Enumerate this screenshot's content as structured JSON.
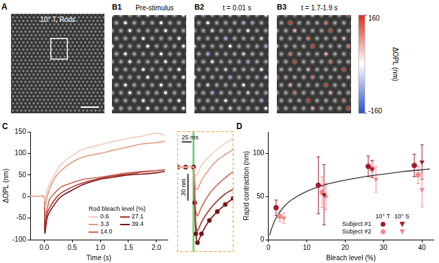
{
  "panels": [
    {
      "label": "A",
      "title": "10° T, Rods"
    },
    {
      "label": "B1",
      "title": "Pre-stimulus"
    },
    {
      "label": "B2",
      "title": "t = 0.01 s"
    },
    {
      "label": "B3",
      "title": "t = 1.7-1.9 s"
    }
  ],
  "colorbar": {
    "label": "ΔOPL (nm)",
    "range": [
      -160,
      160
    ],
    "ticks": [
      -160,
      160
    ]
  },
  "chart_data": [
    {
      "panel": "C",
      "type": "line",
      "xlabel": "Time (s)",
      "ylabel": "ΔOPL (nm)",
      "x": [
        -0.25,
        -0.1,
        0,
        0.01,
        0.05,
        0.1,
        0.2,
        0.3,
        0.5,
        0.7,
        1.0,
        1.25,
        1.5,
        1.75,
        2.0,
        2.15
      ],
      "series": [
        {
          "name": "0.6",
          "color": "#f4c9b8",
          "values": [
            0,
            0,
            0,
            -10,
            15,
            30,
            55,
            75,
            95,
            110,
            120,
            128,
            135,
            140,
            147,
            142
          ]
        },
        {
          "name": "3.3",
          "color": "#e39a80",
          "values": [
            0,
            0,
            0,
            -25,
            -2,
            20,
            45,
            60,
            80,
            92,
            100,
            108,
            115,
            122,
            125,
            128
          ]
        },
        {
          "name": "14.0",
          "color": "#c9614e",
          "values": [
            0,
            0,
            0,
            -55,
            -30,
            -5,
            10,
            22,
            32,
            40,
            45,
            50,
            55,
            58,
            60,
            62
          ]
        },
        {
          "name": "27.1",
          "color": "#a8302b",
          "values": [
            0,
            0,
            0,
            -72,
            -40,
            -25,
            -5,
            8,
            22,
            32,
            42,
            48,
            52,
            57,
            60,
            62
          ]
        },
        {
          "name": "39.4",
          "color": "#7a1014",
          "values": [
            0,
            0,
            0,
            -85,
            -50,
            -35,
            -15,
            0,
            15,
            28,
            40,
            45,
            50,
            52,
            55,
            58
          ]
        }
      ],
      "xlim": [
        -0.25,
        2.2
      ],
      "ylim": [
        -100,
        150
      ],
      "xticks": [
        {
          "value": 0,
          "label": "0.0"
        },
        0.5,
        {
          "value": 1,
          "label": "1.0"
        },
        1.5,
        {
          "value": 2,
          "label": "2.0"
        }
      ],
      "yticks": [
        -100,
        -50,
        0,
        50,
        100,
        150
      ],
      "legend_title": "Rod bleach level (%)",
      "legend": "lower right",
      "grid": false
    },
    {
      "type": "line",
      "x": [
        -0.04,
        -0.02,
        0,
        0.003,
        0.006,
        0.01,
        0.02,
        0.04,
        0.06,
        0.08,
        0.1
      ],
      "series": [
        {
          "color": "#f4c9b8",
          "marker": "none",
          "values": [
            0,
            0,
            0,
            -5,
            -10,
            -8,
            2,
            12,
            20,
            27,
            32
          ]
        },
        {
          "color": "#e39a80",
          "marker": "none",
          "values": [
            0,
            0,
            0,
            -15,
            -25,
            -25,
            -15,
            -2,
            8,
            14,
            20
          ]
        },
        {
          "color": "#c9614e",
          "marker": "none",
          "values": [
            0,
            0,
            0,
            -30,
            -50,
            -55,
            -45,
            -30,
            -20,
            -12,
            -5
          ]
        },
        {
          "color": "#a8302b",
          "marker": "none",
          "values": [
            0,
            0,
            0,
            -35,
            -65,
            -72,
            -62,
            -48,
            -38,
            -30,
            -25
          ]
        },
        {
          "color": "#7a1014",
          "marker": "circle",
          "values": [
            0,
            0,
            0,
            -40,
            -75,
            -85,
            -75,
            -60,
            -50,
            -42,
            -35
          ]
        }
      ],
      "xlim": [
        -0.04,
        0.1
      ],
      "ylim": [
        -95,
        40
      ],
      "tick_labels": false,
      "grid": false,
      "stimulus_x": 0,
      "scale_bars": [
        {
          "label": "25 ms",
          "value": 0.025,
          "axis": "x"
        },
        {
          "label": "30 nm",
          "value": 30,
          "axis": "y"
        }
      ]
    },
    {
      "panel": "D",
      "type": "scatter",
      "xlabel": "Bleach level (%)",
      "ylabel": "Rapid contraction (nm)",
      "series": [
        {
          "subject": "Subject #1",
          "location": "10° T",
          "color": "#a3192b",
          "marker": "circle",
          "x": [
            2,
            13,
            26,
            38
          ],
          "values": [
            37,
            63,
            85,
            86
          ],
          "errors": [
            9,
            33,
            12,
            13
          ]
        },
        {
          "subject": "Subject #1",
          "location": "10° S",
          "color": "#a3192b",
          "marker": "triangle_down",
          "x": [
            14.5,
            27,
            40
          ],
          "values": [
            52,
            82,
            90
          ],
          "errors": [
            35,
            10,
            20
          ]
        },
        {
          "subject": "Subject #2",
          "location": "10° T",
          "color": "#f08a8a",
          "marker": "circle",
          "x": [
            3,
            14,
            27,
            39
          ],
          "values": [
            27,
            55,
            82,
            75
          ],
          "errors": [
            6,
            18,
            8,
            10
          ]
        },
        {
          "subject": "Subject #2",
          "location": "10° S",
          "color": "#f08a8a",
          "marker": "triangle_down",
          "x": [
            4,
            15,
            28,
            40
          ],
          "values": [
            25,
            50,
            70,
            58
          ],
          "errors": [
            6,
            15,
            15,
            20
          ]
        },
        {
          "type": "line",
          "color": "#333333",
          "marker": "none",
          "x": [
            0.3,
            1,
            2,
            4,
            6,
            10,
            15,
            20,
            25,
            30,
            35,
            40,
            42
          ],
          "values": [
            5,
            15,
            25,
            38,
            46,
            56,
            64,
            69,
            73,
            76,
            79,
            81,
            82
          ]
        }
      ],
      "xlim": [
        0,
        43
      ],
      "ylim": [
        0,
        125
      ],
      "xticks": [
        0,
        10,
        20,
        30,
        40
      ],
      "yticks": [
        0,
        50,
        100
      ],
      "legend": "lower right",
      "grid": false
    }
  ]
}
